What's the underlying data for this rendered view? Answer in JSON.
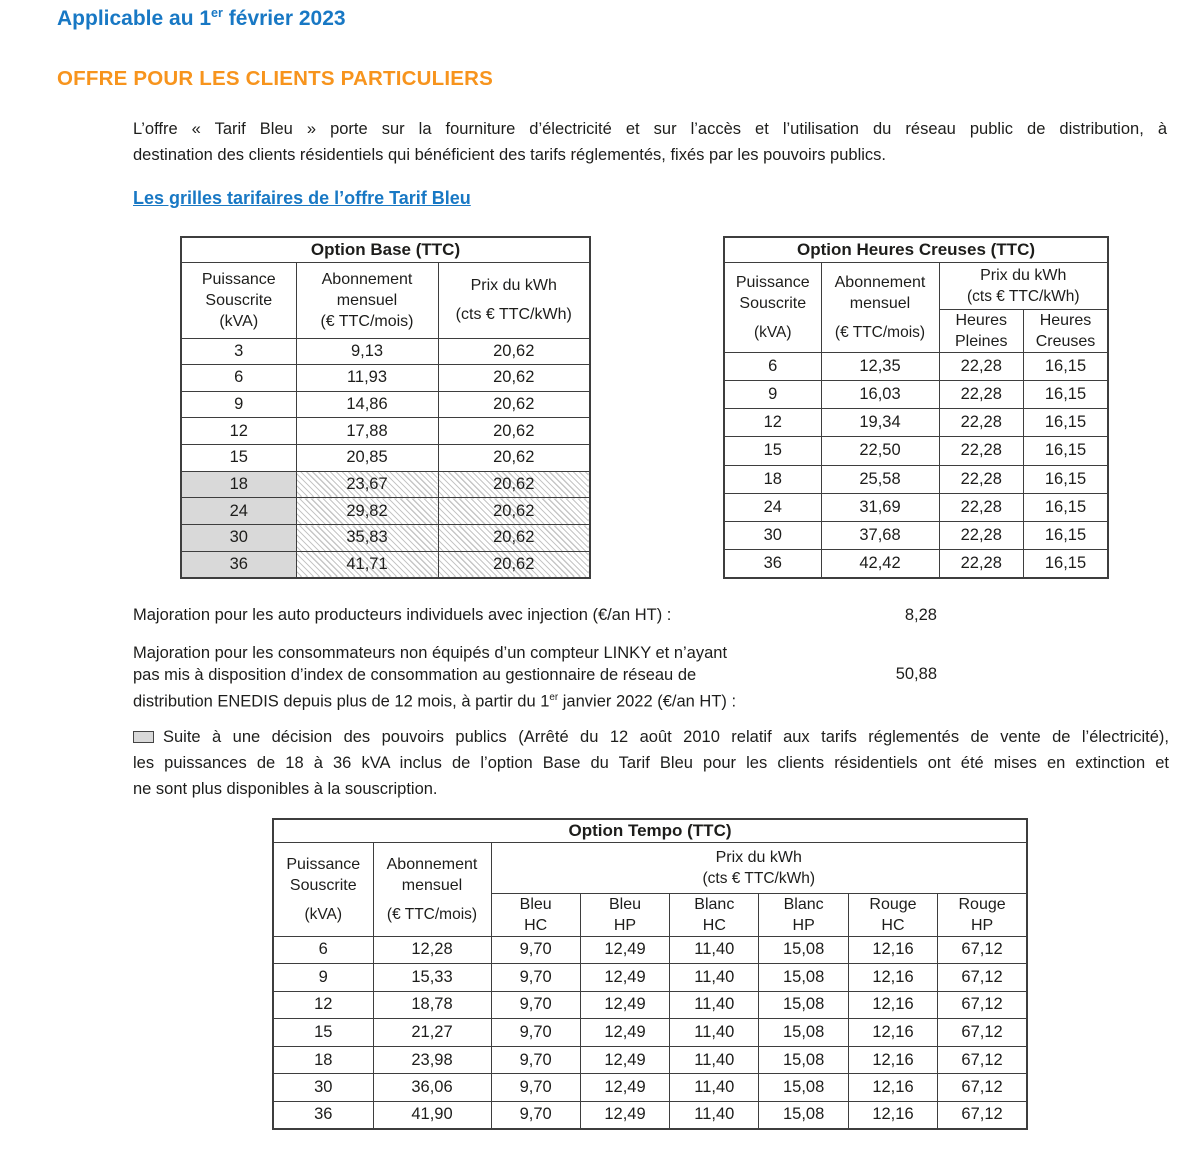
{
  "colors": {
    "blue": "#1878C4",
    "orange": "#F7941D",
    "shade": "#D9D9D9",
    "border": "#3E3E3E"
  },
  "header": {
    "date_prefix": "Applicable au 1",
    "date_sup": "er",
    "date_suffix": " février 2023",
    "section_title": "OFFRE POUR LES CLIENTS PARTICULIERS"
  },
  "intro": {
    "line1": "L’offre « Tarif Bleu » porte sur la fourniture d’électricité et sur l’accès et l’utilisation du réseau public de distribution, à",
    "line2": "destination des clients résidentiels qui bénéficient des tarifs réglementés, fixés par les pouvoirs publics."
  },
  "link_heading": "Les grilles tarifaires de l’offre Tarif Bleu",
  "base_table": {
    "title": "Option Base (TTC)",
    "headers": {
      "col1": [
        "Puissance",
        "Souscrite",
        "(kVA)"
      ],
      "col2": [
        "Abonnement",
        "mensuel",
        "(€ TTC/mois)"
      ],
      "col3": [
        "Prix du kWh",
        "",
        "(cts € TTC/kWh)"
      ]
    },
    "rows": [
      {
        "cells": [
          "3",
          "9,13",
          "20,62"
        ],
        "extinct": false
      },
      {
        "cells": [
          "6",
          "11,93",
          "20,62"
        ],
        "extinct": false
      },
      {
        "cells": [
          "9",
          "14,86",
          "20,62"
        ],
        "extinct": false
      },
      {
        "cells": [
          "12",
          "17,88",
          "20,62"
        ],
        "extinct": false
      },
      {
        "cells": [
          "15",
          "20,85",
          "20,62"
        ],
        "extinct": false
      },
      {
        "cells": [
          "18",
          "23,67",
          "20,62"
        ],
        "extinct": true
      },
      {
        "cells": [
          "24",
          "29,82",
          "20,62"
        ],
        "extinct": true
      },
      {
        "cells": [
          "30",
          "35,83",
          "20,62"
        ],
        "extinct": true
      },
      {
        "cells": [
          "36",
          "41,71",
          "20,62"
        ],
        "extinct": true
      }
    ]
  },
  "hc_table": {
    "title": "Option Heures Creuses (TTC)",
    "headers": {
      "col1": [
        "Puissance",
        "Souscrite",
        "",
        "(kVA)"
      ],
      "col2": [
        "Abonnement",
        "mensuel",
        "",
        "(€ TTC/mois)"
      ],
      "price_group": [
        "Prix du kWh",
        "(cts € TTC/kWh)"
      ],
      "sub_hp": [
        "Heures",
        "Pleines"
      ],
      "sub_hc": [
        "Heures",
        "Creuses"
      ]
    },
    "rows": [
      {
        "cells": [
          "6",
          "12,35",
          "22,28",
          "16,15"
        ]
      },
      {
        "cells": [
          "9",
          "16,03",
          "22,28",
          "16,15"
        ]
      },
      {
        "cells": [
          "12",
          "19,34",
          "22,28",
          "16,15"
        ]
      },
      {
        "cells": [
          "15",
          "22,50",
          "22,28",
          "16,15"
        ]
      },
      {
        "cells": [
          "18",
          "25,58",
          "22,28",
          "16,15"
        ]
      },
      {
        "cells": [
          "24",
          "31,69",
          "22,28",
          "16,15"
        ]
      },
      {
        "cells": [
          "30",
          "37,68",
          "22,28",
          "16,15"
        ]
      },
      {
        "cells": [
          "36",
          "42,42",
          "22,28",
          "16,15"
        ]
      }
    ]
  },
  "majoration_injection": {
    "label": "Majoration pour les auto producteurs individuels avec injection (€/an HT) :",
    "value": "8,28"
  },
  "majoration_linky": {
    "line1": "Majoration pour les consommateurs non équipés d’un compteur LINKY et n’ayant",
    "line2": "pas mis à disposition d’index de consommation au gestionnaire de réseau de",
    "line3_prefix": "distribution ENEDIS depuis plus de 12 mois, à partir du 1",
    "line3_sup": "er",
    "line3_suffix": " janvier 2022 (€/an HT) :",
    "value": "50,88"
  },
  "notice": {
    "icon": "shaded-row-swatch",
    "line1": "Suite à une décision des pouvoirs publics (Arrêté du 12 août 2010 relatif aux tarifs réglementés de vente de l’électricité),",
    "line2": "les puissances de 18 à 36 kVA inclus de l’option Base du Tarif Bleu pour les clients résidentiels ont été mises en extinction et",
    "line3": "ne sont plus disponibles à la souscription."
  },
  "tempo_table": {
    "title": "Option Tempo (TTC)",
    "headers": {
      "col1": [
        "Puissance",
        "Souscrite",
        "",
        "(kVA)"
      ],
      "col2": [
        "Abonnement",
        "mensuel",
        "",
        "(€ TTC/mois)"
      ],
      "price_group": [
        "Prix du kWh",
        "(cts € TTC/kWh)"
      ],
      "subs": [
        [
          "Bleu",
          "HC"
        ],
        [
          "Bleu",
          "HP"
        ],
        [
          "Blanc",
          "HC"
        ],
        [
          "Blanc",
          "HP"
        ],
        [
          "Rouge",
          "HC"
        ],
        [
          "Rouge",
          "HP"
        ]
      ]
    },
    "rows": [
      {
        "cells": [
          "6",
          "12,28",
          "9,70",
          "12,49",
          "11,40",
          "15,08",
          "12,16",
          "67,12"
        ]
      },
      {
        "cells": [
          "9",
          "15,33",
          "9,70",
          "12,49",
          "11,40",
          "15,08",
          "12,16",
          "67,12"
        ]
      },
      {
        "cells": [
          "12",
          "18,78",
          "9,70",
          "12,49",
          "11,40",
          "15,08",
          "12,16",
          "67,12"
        ]
      },
      {
        "cells": [
          "15",
          "21,27",
          "9,70",
          "12,49",
          "11,40",
          "15,08",
          "12,16",
          "67,12"
        ]
      },
      {
        "cells": [
          "18",
          "23,98",
          "9,70",
          "12,49",
          "11,40",
          "15,08",
          "12,16",
          "67,12"
        ]
      },
      {
        "cells": [
          "30",
          "36,06",
          "9,70",
          "12,49",
          "11,40",
          "15,08",
          "12,16",
          "67,12"
        ]
      },
      {
        "cells": [
          "36",
          "41,90",
          "9,70",
          "12,49",
          "11,40",
          "15,08",
          "12,16",
          "67,12"
        ]
      }
    ]
  }
}
